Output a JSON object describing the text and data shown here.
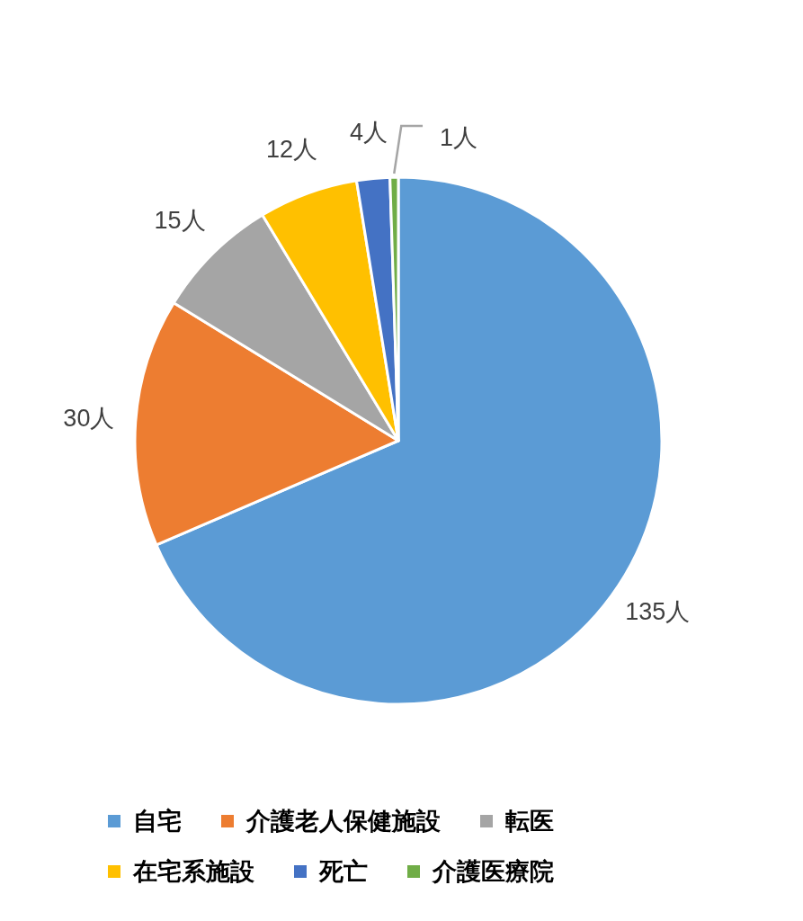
{
  "chart_data": {
    "type": "pie",
    "categories": [
      "自宅",
      "介護老人保健施設",
      "転医",
      "在宅系施設",
      "死亡",
      "介護医療院"
    ],
    "values": [
      135,
      30,
      15,
      12,
      4,
      1
    ],
    "colors": [
      "#5b9bd5",
      "#ed7d31",
      "#a5a5a5",
      "#ffc000",
      "#4472c4",
      "#70ad47"
    ],
    "value_labels": [
      "135人",
      "30人",
      "15人",
      "12人",
      "4人",
      "1人"
    ],
    "legend": "bottom"
  }
}
